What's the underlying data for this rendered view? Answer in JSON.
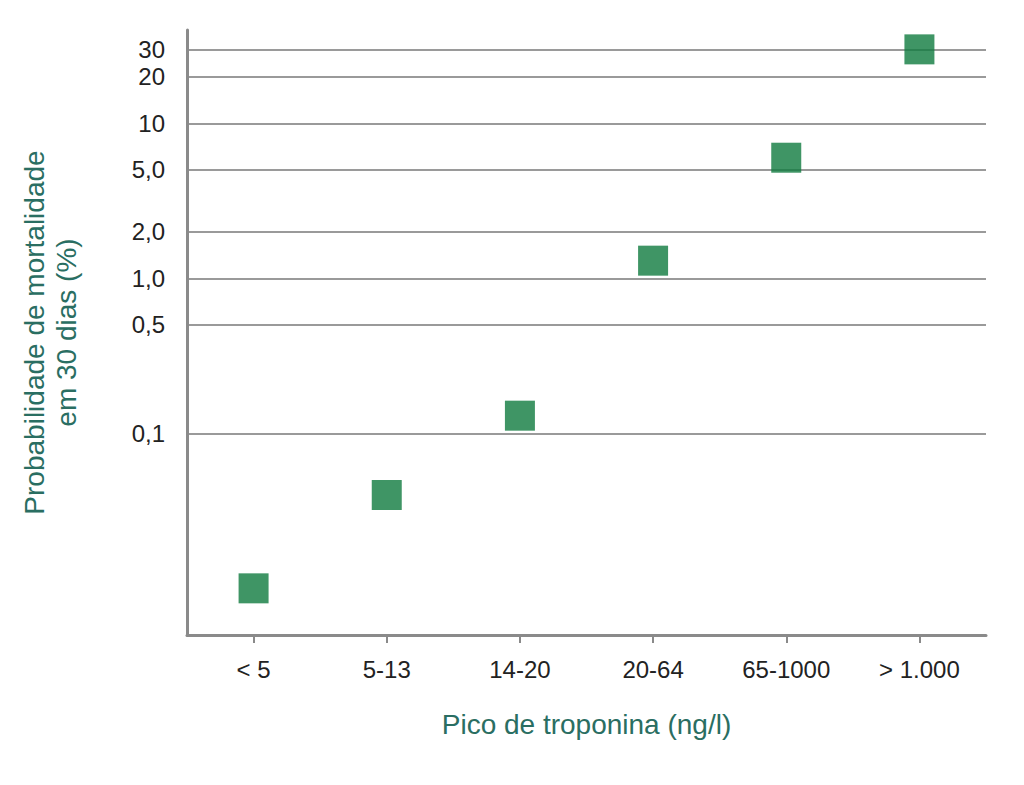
{
  "chart_data": {
    "type": "scatter",
    "x_label": "Pico de troponina (ng/l)",
    "y_label": "Probabilidade de mortalidade\nem 30 dias (%)",
    "categories": [
      "< 5",
      "5-13",
      "14-20",
      "20-64",
      "65-1000",
      "> 1.000"
    ],
    "values": [
      0.01,
      0.04,
      0.13,
      1.3,
      6,
      30
    ],
    "color": "#0f7a3e",
    "marker": "square",
    "log": "y",
    "ylim": [
      0.005,
      40
    ],
    "yticks": [
      {
        "value": 0.1,
        "label": "0,1"
      },
      {
        "value": 0.5,
        "label": "0,5"
      },
      {
        "value": 1,
        "label": "1,0"
      },
      {
        "value": 2,
        "label": "2,0"
      },
      {
        "value": 5,
        "label": "5,0"
      },
      10,
      20,
      30
    ],
    "grid": true
  }
}
